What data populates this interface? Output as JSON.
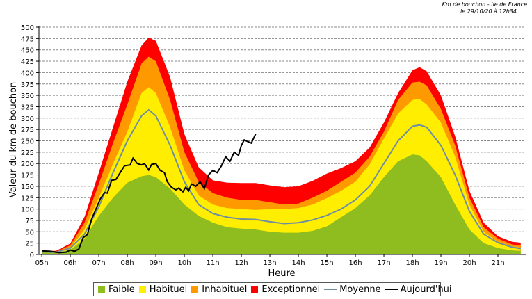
{
  "header": {
    "line1": "Km de bouchon - Ile de France",
    "line2": "le 29/10/20 à 12h34"
  },
  "chart_data": {
    "type": "area",
    "title": "Km de bouchon - Ile de France",
    "xlabel": "Heure",
    "ylabel": "Valeur du  km de bouchon",
    "xlim": [
      4.9,
      22.0
    ],
    "ylim": [
      0,
      500
    ],
    "yticks": [
      0,
      25,
      50,
      75,
      100,
      125,
      150,
      175,
      200,
      225,
      250,
      275,
      300,
      325,
      350,
      375,
      400,
      425,
      450,
      475,
      500
    ],
    "xticks": [
      5,
      6,
      7,
      8,
      9,
      10,
      11,
      12,
      13,
      14,
      15,
      16,
      17,
      18,
      19,
      20,
      21
    ],
    "xtick_labels": [
      "05h",
      "06h",
      "07h",
      "08h",
      "09h",
      "10h",
      "11h",
      "12h",
      "13h",
      "14h",
      "15h",
      "16h",
      "17h",
      "18h",
      "19h",
      "20h",
      "21h"
    ],
    "grid": true,
    "legend_position": "bottom",
    "x": [
      5.0,
      5.5,
      6.0,
      6.5,
      7.0,
      7.5,
      8.0,
      8.5,
      8.75,
      9.0,
      9.5,
      10.0,
      10.5,
      11.0,
      11.5,
      12.0,
      12.5,
      13.0,
      13.5,
      14.0,
      14.5,
      15.0,
      15.5,
      16.0,
      16.5,
      17.0,
      17.5,
      18.0,
      18.25,
      18.5,
      19.0,
      19.5,
      20.0,
      20.5,
      21.0,
      21.5,
      21.8
    ],
    "series": [
      {
        "name": "Faible",
        "color": "#8fbc1e",
        "values": [
          5,
          4,
          10,
          35,
          85,
          125,
          158,
          172,
          175,
          170,
          145,
          110,
          85,
          70,
          60,
          57,
          55,
          50,
          48,
          48,
          52,
          62,
          82,
          102,
          130,
          170,
          205,
          220,
          218,
          205,
          170,
          110,
          55,
          25,
          14,
          9,
          8
        ]
      },
      {
        "name": "Habituel",
        "color": "#ffee00",
        "values": [
          6,
          5,
          15,
          55,
          125,
          200,
          270,
          355,
          368,
          355,
          280,
          185,
          130,
          110,
          102,
          100,
          98,
          100,
          100,
          102,
          110,
          124,
          140,
          160,
          198,
          255,
          310,
          340,
          342,
          330,
          290,
          215,
          110,
          50,
          28,
          18,
          15
        ]
      },
      {
        "name": "Inhabituel",
        "color": "#ff9900",
        "values": [
          7,
          6,
          20,
          70,
          155,
          245,
          330,
          420,
          435,
          425,
          340,
          225,
          160,
          135,
          125,
          120,
          120,
          115,
          110,
          112,
          125,
          140,
          160,
          180,
          215,
          270,
          340,
          378,
          380,
          372,
          320,
          240,
          125,
          60,
          35,
          22,
          20
        ]
      },
      {
        "name": "Exceptionnel",
        "color": "#ff0000",
        "values": [
          8,
          8,
          24,
          83,
          180,
          280,
          380,
          460,
          477,
          470,
          390,
          265,
          192,
          163,
          158,
          157,
          157,
          152,
          148,
          150,
          162,
          178,
          190,
          205,
          235,
          290,
          355,
          405,
          412,
          403,
          350,
          260,
          140,
          70,
          40,
          28,
          26
        ]
      },
      {
        "name": "Moyenne",
        "color": "#6f8da0",
        "values": [
          6,
          5,
          14,
          45,
          105,
          180,
          250,
          305,
          318,
          305,
          240,
          160,
          110,
          90,
          82,
          78,
          77,
          72,
          68,
          70,
          76,
          86,
          100,
          120,
          150,
          200,
          250,
          282,
          285,
          280,
          240,
          175,
          95,
          45,
          26,
          16,
          13
        ]
      }
    ],
    "today": {
      "name": "Aujourd'hui",
      "color": "#000000",
      "x": [
        5.0,
        5.3,
        5.6,
        5.85,
        6.0,
        6.15,
        6.3,
        6.45,
        6.6,
        6.75,
        6.9,
        7.05,
        7.2,
        7.3,
        7.45,
        7.6,
        7.75,
        7.9,
        8.0,
        8.1,
        8.2,
        8.35,
        8.5,
        8.6,
        8.75,
        8.85,
        9.0,
        9.15,
        9.3,
        9.4,
        9.55,
        9.7,
        9.8,
        9.95,
        10.05,
        10.15,
        10.25,
        10.4,
        10.55,
        10.7,
        10.85,
        11.0,
        11.15,
        11.3,
        11.45,
        11.6,
        11.75,
        11.9,
        12.0,
        12.1,
        12.2,
        12.35,
        12.5
      ],
      "values": [
        8,
        7,
        4,
        5,
        10,
        7,
        12,
        37,
        44,
        78,
        100,
        122,
        136,
        135,
        163,
        165,
        180,
        195,
        196,
        197,
        212,
        200,
        197,
        200,
        186,
        198,
        200,
        185,
        180,
        160,
        148,
        142,
        146,
        138,
        148,
        140,
        155,
        150,
        160,
        145,
        175,
        185,
        180,
        195,
        215,
        205,
        225,
        218,
        240,
        252,
        249,
        245,
        265
      ]
    }
  },
  "legend": {
    "items": [
      {
        "label": "Faible",
        "color": "#8fbc1e",
        "kind": "box"
      },
      {
        "label": "Habituel",
        "color": "#ffee00",
        "kind": "box"
      },
      {
        "label": "Inhabituel",
        "color": "#ff9900",
        "kind": "box"
      },
      {
        "label": "Exceptionnel",
        "color": "#ff0000",
        "kind": "box"
      },
      {
        "label": "Moyenne",
        "color": "#6f8da0",
        "kind": "line"
      },
      {
        "label": "Aujourd'hui",
        "color": "#000000",
        "kind": "line"
      }
    ]
  }
}
